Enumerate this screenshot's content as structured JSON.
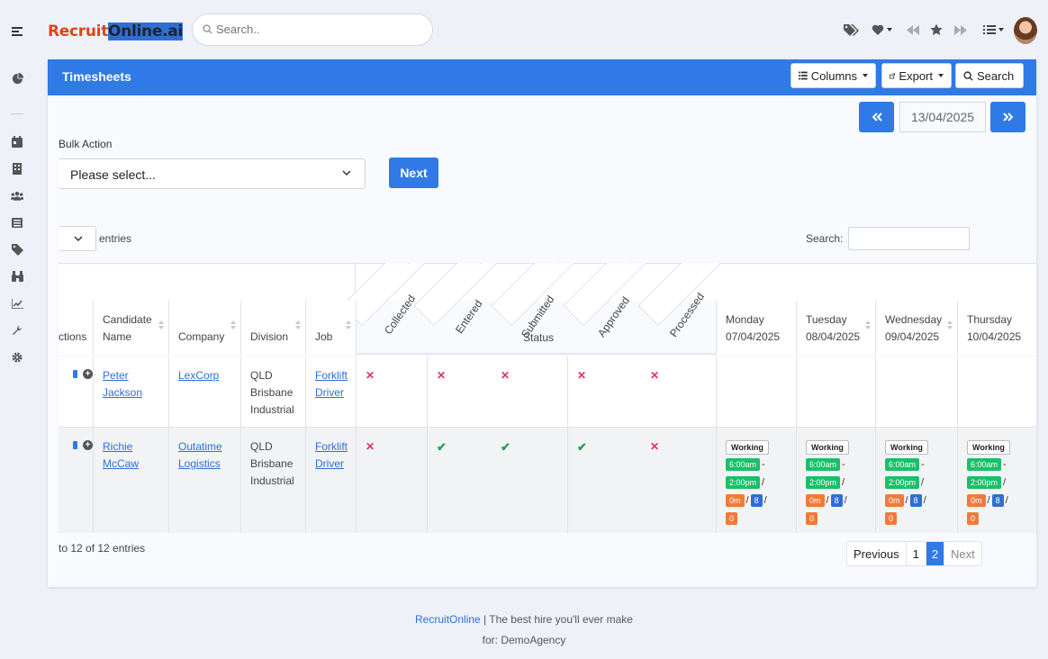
{
  "header": {
    "logo_part1": "Recruit",
    "logo_part2": "Online.ai",
    "search_placeholder": "Search..",
    "icons": [
      "tags-icon",
      "heart-icon",
      "rewind-icon",
      "star-icon",
      "forward-icon",
      "list-icon"
    ]
  },
  "sidebar": {
    "icons": [
      "pie-chart-icon",
      "calendar-icon",
      "building-icon",
      "users-icon",
      "list-icon",
      "tag-icon",
      "binoculars-icon",
      "line-chart-icon",
      "wrench-icon",
      "gear-icon"
    ]
  },
  "card": {
    "title": "Timesheets",
    "columns_label": "Columns",
    "export_label": "Export",
    "search_label": "Search",
    "date_value": "13/04/2025"
  },
  "bulk": {
    "label": "Bulk Action",
    "select_value": "Please select...",
    "next_label": "Next"
  },
  "datatable": {
    "entries_label": "entries",
    "search_label": "Search:",
    "columns": [
      "ctions",
      "Candidate Name",
      "Company",
      "Division",
      "Job"
    ],
    "status_columns": [
      "Collected",
      "Entered",
      "Submitted",
      "Approved",
      "Processed"
    ],
    "status_label": "Status",
    "days": [
      {
        "name": "Monday",
        "date": "07/04/2025"
      },
      {
        "name": "Tuesday",
        "date": "08/04/2025"
      },
      {
        "name": "Wednesday",
        "date": "09/04/2025"
      },
      {
        "name": "Thursday",
        "date": "10/04/2025"
      }
    ],
    "rows": [
      {
        "candidate_first": "Peter",
        "candidate_last": "Jackson",
        "company_1": "LexCorp",
        "company_2": "",
        "division_1": "QLD",
        "division_2": "Brisbane",
        "division_3": "Industrial",
        "job_1": "Forklift",
        "job_2": "Driver",
        "status": [
          "x",
          "x",
          "x",
          "x",
          "x"
        ]
      },
      {
        "candidate_first": "Richie",
        "candidate_last": "McCaw",
        "company_1": "Outatime",
        "company_2": "Logistics",
        "division_1": "QLD",
        "division_2": "Brisbane",
        "division_3": "Industrial",
        "job_1": "Forklift",
        "job_2": "Driver",
        "status": [
          "x",
          "check",
          "check",
          "check",
          "x"
        ],
        "shift": {
          "type": "Working",
          "start": "6:00am",
          "end": "2:00pm",
          "break": "0m",
          "hours": "8",
          "extra": "0"
        }
      }
    ],
    "footer_info": "to 12 of 12 entries",
    "pagination": {
      "previous": "Previous",
      "page1": "1",
      "page2": "2",
      "next": "Next"
    }
  },
  "site_footer": {
    "brand": "RecruitOnline",
    "tagline": " | The best hire you'll ever make",
    "agency": "for: DemoAgency"
  },
  "colors": {
    "accent": "#2f7ae5",
    "logo_red": "#e0441a",
    "green": "#1bbf6a",
    "orange": "#f07a3a",
    "cross": "#e0335a"
  }
}
